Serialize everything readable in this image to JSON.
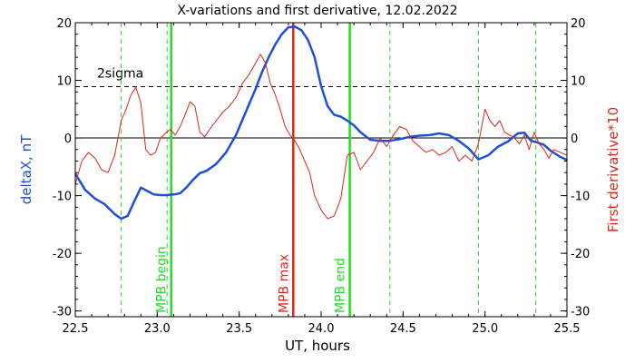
{
  "chart_data": {
    "type": "line",
    "title": "X-variations and first derivative, 12.02.2022",
    "xlabel": "UT, hours",
    "ylabel_left": "deltaX, nT",
    "ylabel_right": "First derivative*10",
    "xlim": [
      22.5,
      25.5
    ],
    "ylim": [
      -31,
      20
    ],
    "x_ticks": [
      "22.5",
      "23.0",
      "23.5",
      "24.0",
      "24.5",
      "25.0",
      "25.5"
    ],
    "y_ticks": [
      "-30",
      "-20",
      "-10",
      "0",
      "10",
      "20"
    ],
    "grid": false,
    "colors": {
      "deltaX": "#1f4fd6",
      "derivative": "#d42a1a",
      "mpb_boundary": "#22dd22",
      "mpb_max": "#d42a1a",
      "dashed_marker": "#33cc33"
    },
    "reference_lines": [
      {
        "kind": "horizontal",
        "y": 0,
        "style": "solid",
        "color": "#000000"
      },
      {
        "kind": "horizontal",
        "y": 8.9,
        "style": "dashed",
        "color": "#000000",
        "label": "2sigma"
      }
    ],
    "vertical_markers": [
      {
        "x": 23.085,
        "style": "solid",
        "color": "#22dd22",
        "label": "MPB begin"
      },
      {
        "x": 23.83,
        "style": "solid",
        "color": "#d42a1a",
        "label": "MPB max"
      },
      {
        "x": 24.175,
        "style": "solid",
        "color": "#22dd22",
        "label": "MPB end"
      },
      {
        "x": 22.78,
        "style": "dashed",
        "color": "#33cc33"
      },
      {
        "x": 23.06,
        "style": "dashed",
        "color": "#33cc33"
      },
      {
        "x": 24.42,
        "style": "dashed",
        "color": "#33cc33"
      },
      {
        "x": 24.96,
        "style": "dashed",
        "color": "#33cc33"
      },
      {
        "x": 25.31,
        "style": "dashed",
        "color": "#33cc33"
      }
    ],
    "series": [
      {
        "key": "deltaX",
        "name": "deltaX, nT",
        "x": [
          22.5,
          22.56,
          22.62,
          22.68,
          22.74,
          22.78,
          22.82,
          22.86,
          22.9,
          22.94,
          22.98,
          23.02,
          23.06,
          23.1,
          23.14,
          23.18,
          23.22,
          23.26,
          23.3,
          23.36,
          23.42,
          23.48,
          23.54,
          23.6,
          23.64,
          23.68,
          23.72,
          23.76,
          23.8,
          23.84,
          23.88,
          23.92,
          23.96,
          24.0,
          24.04,
          24.08,
          24.12,
          24.16,
          24.2,
          24.24,
          24.3,
          24.36,
          24.42,
          24.48,
          24.54,
          24.6,
          24.66,
          24.72,
          24.78,
          24.84,
          24.9,
          24.96,
          25.02,
          25.08,
          25.14,
          25.2,
          25.24,
          25.28,
          25.32,
          25.36,
          25.4,
          25.46,
          25.5
        ],
        "y": [
          -6.2,
          -9.0,
          -10.5,
          -11.5,
          -13.2,
          -14.0,
          -13.5,
          -11.0,
          -8.6,
          -9.2,
          -9.8,
          -9.9,
          -9.9,
          -9.8,
          -9.6,
          -8.5,
          -7.2,
          -6.1,
          -5.7,
          -4.5,
          -2.5,
          0.5,
          4.5,
          8.5,
          11.5,
          14.0,
          16.2,
          18.0,
          19.2,
          19.3,
          18.7,
          17.0,
          14.0,
          9.0,
          5.5,
          4.0,
          3.7,
          3.0,
          2.2,
          1.0,
          -0.3,
          -0.5,
          -0.5,
          -0.2,
          0.2,
          0.4,
          0.5,
          0.8,
          0.5,
          -0.5,
          -1.8,
          -3.7,
          -3.0,
          -1.5,
          -0.6,
          0.8,
          0.9,
          -0.5,
          -0.8,
          -1.2,
          -2.2,
          -3.3,
          -3.8
        ]
      },
      {
        "key": "derivative",
        "name": "First derivative*10",
        "x": [
          22.5,
          22.54,
          22.58,
          22.62,
          22.66,
          22.7,
          22.74,
          22.78,
          22.81,
          22.84,
          22.87,
          22.9,
          22.93,
          22.96,
          22.99,
          23.02,
          23.05,
          23.08,
          23.11,
          23.14,
          23.17,
          23.2,
          23.23,
          23.26,
          23.29,
          23.32,
          23.36,
          23.4,
          23.44,
          23.48,
          23.52,
          23.56,
          23.6,
          23.63,
          23.66,
          23.69,
          23.72,
          23.75,
          23.78,
          23.81,
          23.84,
          23.87,
          23.9,
          23.93,
          23.96,
          24.0,
          24.04,
          24.08,
          24.12,
          24.16,
          24.2,
          24.24,
          24.28,
          24.32,
          24.36,
          24.4,
          24.44,
          24.48,
          24.52,
          24.56,
          24.6,
          24.64,
          24.68,
          24.72,
          24.76,
          24.8,
          24.84,
          24.88,
          24.92,
          24.96,
          25.0,
          25.03,
          25.06,
          25.09,
          25.12,
          25.15,
          25.18,
          25.21,
          25.24,
          25.27,
          25.3,
          25.33,
          25.36,
          25.39,
          25.42,
          25.46,
          25.5
        ],
        "y": [
          -8.0,
          -4.0,
          -2.5,
          -3.5,
          -5.5,
          -6.0,
          -3.0,
          3.0,
          5.0,
          7.5,
          8.8,
          6.0,
          -2.0,
          -3.0,
          -2.5,
          0.0,
          0.8,
          1.5,
          0.5,
          2.0,
          4.0,
          6.3,
          5.5,
          1.0,
          0.2,
          1.5,
          3.0,
          4.5,
          5.5,
          7.0,
          9.5,
          11.0,
          13.0,
          14.5,
          13.0,
          9.5,
          7.5,
          5.0,
          2.0,
          0.5,
          -0.5,
          -2.0,
          -4.0,
          -6.0,
          -10.0,
          -12.5,
          -14.0,
          -13.5,
          -10.5,
          -3.0,
          -2.5,
          -5.5,
          -4.0,
          -2.5,
          0.0,
          -1.5,
          0.5,
          2.0,
          1.5,
          -0.5,
          -1.5,
          -2.5,
          -2.0,
          -3.0,
          -2.5,
          -1.5,
          -4.0,
          -3.0,
          -4.0,
          -1.0,
          5.0,
          3.0,
          2.0,
          3.0,
          1.0,
          0.5,
          0.0,
          -1.0,
          0.5,
          -2.0,
          1.0,
          -1.0,
          -2.0,
          -3.5,
          -2.0,
          -2.5,
          -3.0
        ]
      }
    ]
  }
}
